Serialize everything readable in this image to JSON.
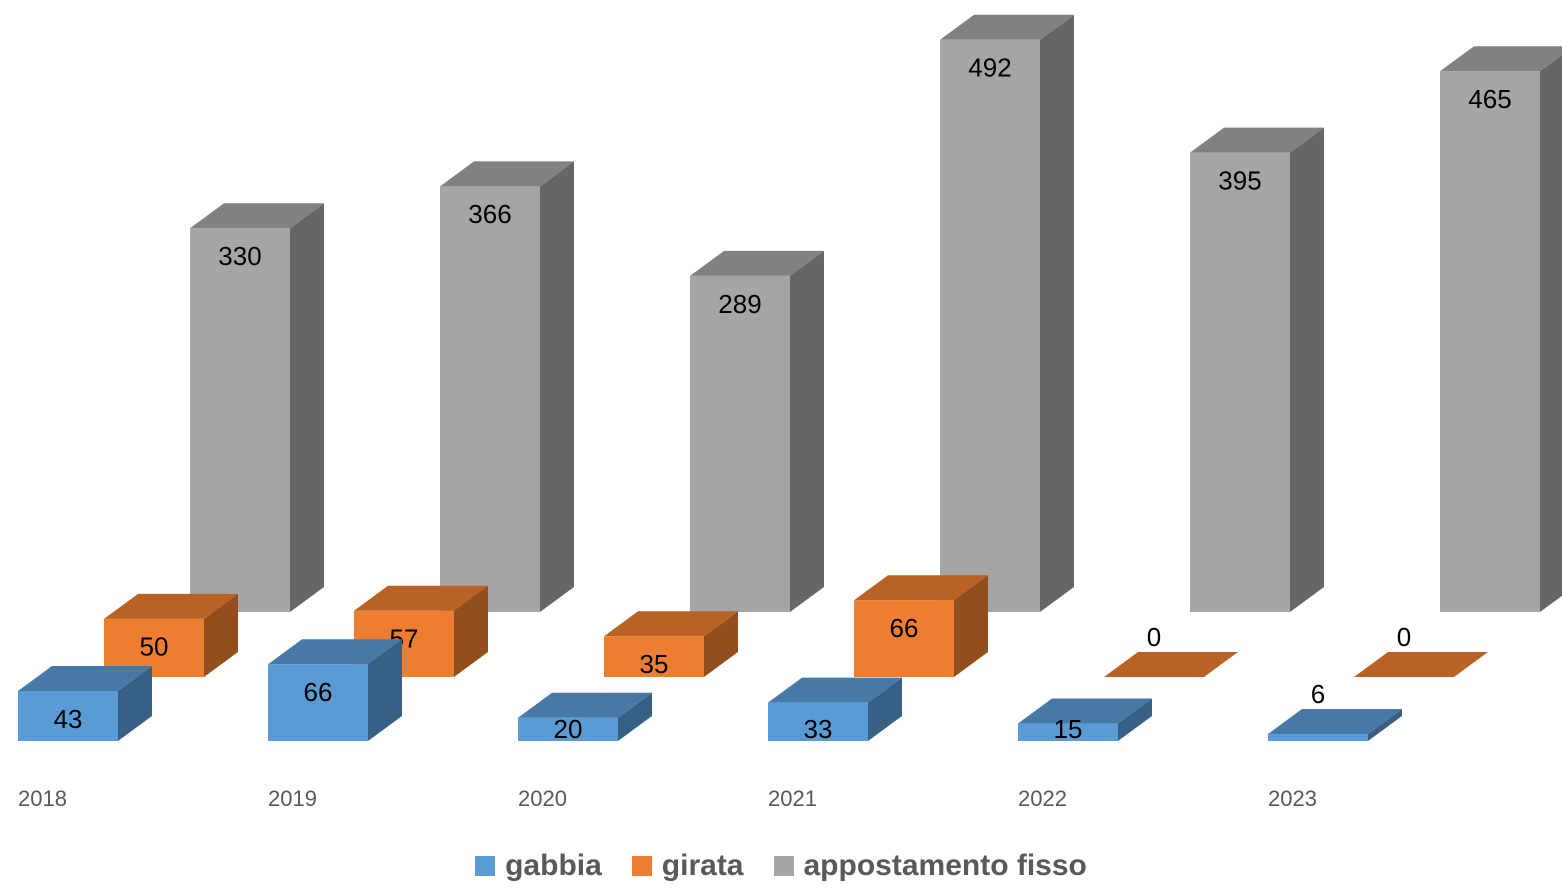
{
  "chart_data": {
    "type": "bar3d",
    "categories": [
      "2018",
      "2019",
      "2020",
      "2021",
      "2022",
      "2023"
    ],
    "series": [
      {
        "name": "gabbia",
        "color": "#5b9bd5",
        "values": [
          43,
          66,
          20,
          33,
          15,
          6
        ]
      },
      {
        "name": "girata",
        "color": "#ed7d31",
        "values": [
          50,
          57,
          35,
          66,
          0,
          0
        ]
      },
      {
        "name": "appostamento fisso",
        "color": "#a5a5a5",
        "values": [
          330,
          366,
          289,
          492,
          395,
          465
        ]
      }
    ],
    "legend": "bottom"
  }
}
